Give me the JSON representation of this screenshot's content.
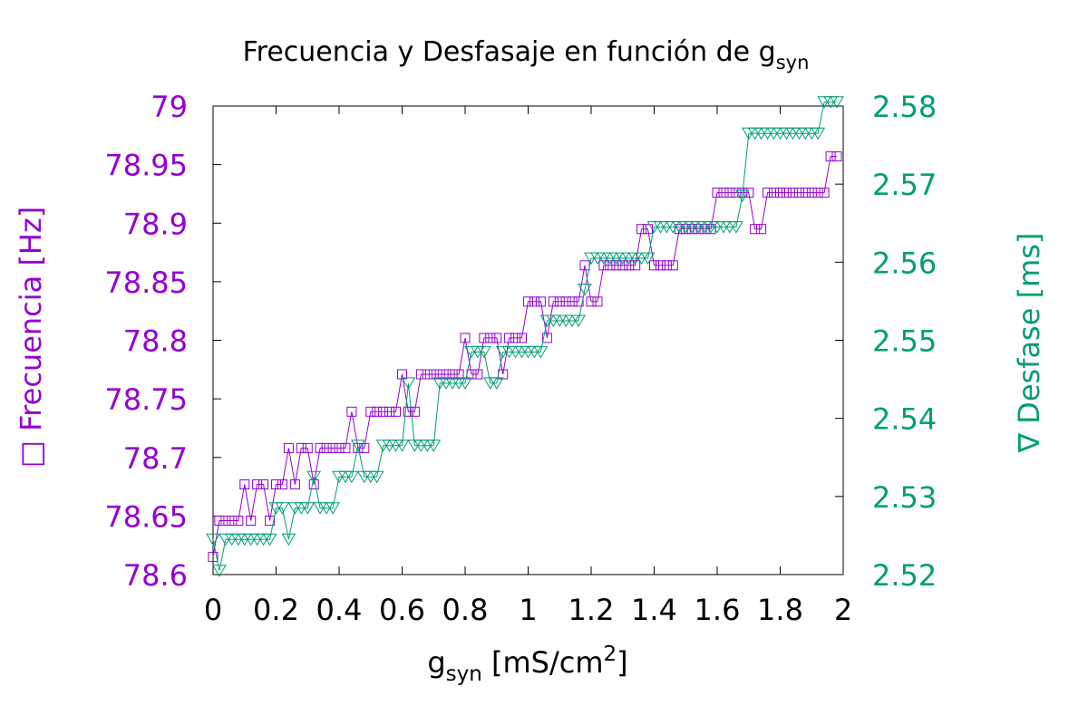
{
  "chart_data": {
    "type": "line",
    "title": {
      "main": "Frecuencia y Desfasaje en función de g",
      "sub": "syn"
    },
    "xlabel": {
      "main": "g",
      "sub": "syn",
      "units_pre": " [mS/cm",
      "sup": "2",
      "units_post": "]"
    },
    "ylabel_left": "□ Frecuencia  [Hz]",
    "ylabel_right": "∇ Desfase [ms]",
    "xlim": [
      0,
      2
    ],
    "ylim_left": [
      78.6,
      79
    ],
    "ylim_right": [
      2.52,
      2.58
    ],
    "x_ticks": [
      "0",
      "0.2",
      "0.4",
      "0.6",
      "0.8",
      "1",
      "1.2",
      "1.4",
      "1.6",
      "1.8",
      "2"
    ],
    "y_left_ticks": [
      "78.6",
      "78.65",
      "78.7",
      "78.75",
      "78.8",
      "78.85",
      "78.9",
      "78.95",
      "79"
    ],
    "y_right_ticks": [
      "2.52",
      "2.53",
      "2.54",
      "2.55",
      "2.56",
      "2.57",
      "2.58"
    ],
    "grid": false,
    "colors": {
      "frecuencia": "#9400D3",
      "desfase": "#009E73",
      "axis": "#000000"
    },
    "x": [
      0,
      0.02,
      0.04,
      0.06,
      0.08,
      0.1,
      0.12,
      0.14,
      0.16,
      0.18,
      0.2,
      0.22,
      0.24,
      0.26,
      0.28,
      0.3,
      0.32,
      0.34,
      0.36,
      0.38,
      0.4,
      0.42,
      0.44,
      0.46,
      0.48,
      0.5,
      0.52,
      0.54,
      0.56,
      0.58,
      0.6,
      0.62,
      0.64,
      0.66,
      0.68,
      0.7,
      0.72,
      0.74,
      0.76,
      0.78,
      0.8,
      0.82,
      0.84,
      0.86,
      0.88,
      0.9,
      0.92,
      0.94,
      0.96,
      0.98,
      1,
      1.02,
      1.04,
      1.06,
      1.08,
      1.1,
      1.12,
      1.14,
      1.16,
      1.18,
      1.2,
      1.22,
      1.24,
      1.26,
      1.28,
      1.3,
      1.32,
      1.34,
      1.36,
      1.38,
      1.4,
      1.42,
      1.44,
      1.46,
      1.48,
      1.5,
      1.52,
      1.54,
      1.56,
      1.58,
      1.6,
      1.62,
      1.64,
      1.66,
      1.68,
      1.7,
      1.72,
      1.74,
      1.76,
      1.78,
      1.8,
      1.82,
      1.84,
      1.86,
      1.88,
      1.9,
      1.92,
      1.94,
      1.96,
      1.98
    ],
    "series": [
      {
        "name": "Frecuencia",
        "axis": "left",
        "marker": "square",
        "values": [
          78.615,
          78.646,
          78.646,
          78.646,
          78.646,
          78.677,
          78.646,
          78.677,
          78.677,
          78.646,
          78.677,
          78.677,
          78.708,
          78.677,
          78.708,
          78.708,
          78.677,
          78.708,
          78.708,
          78.708,
          78.708,
          78.708,
          78.739,
          78.708,
          78.708,
          78.739,
          78.739,
          78.739,
          78.739,
          78.739,
          78.771,
          78.739,
          78.739,
          78.771,
          78.771,
          78.771,
          78.771,
          78.771,
          78.771,
          78.771,
          78.802,
          78.771,
          78.771,
          78.802,
          78.802,
          78.802,
          78.771,
          78.802,
          78.802,
          78.802,
          78.833,
          78.833,
          78.833,
          78.802,
          78.833,
          78.833,
          78.833,
          78.833,
          78.833,
          78.864,
          78.833,
          78.833,
          78.864,
          78.864,
          78.864,
          78.864,
          78.864,
          78.864,
          78.895,
          78.895,
          78.864,
          78.864,
          78.864,
          78.864,
          78.895,
          78.895,
          78.895,
          78.895,
          78.895,
          78.895,
          78.926,
          78.926,
          78.926,
          78.926,
          78.926,
          78.926,
          78.895,
          78.895,
          78.926,
          78.926,
          78.926,
          78.926,
          78.926,
          78.926,
          78.926,
          78.926,
          78.926,
          78.926,
          78.957,
          78.957
        ]
      },
      {
        "name": "Desfase",
        "axis": "right",
        "marker": "triangle-down",
        "values": [
          2.5245,
          2.5205,
          2.5245,
          2.5245,
          2.5245,
          2.5245,
          2.5245,
          2.5245,
          2.5245,
          2.5245,
          2.5285,
          2.5285,
          2.5245,
          2.5285,
          2.5285,
          2.5285,
          2.5325,
          2.5285,
          2.5285,
          2.5285,
          2.5325,
          2.5325,
          2.5325,
          2.5365,
          2.5325,
          2.5325,
          2.5325,
          2.5365,
          2.5365,
          2.5365,
          2.5365,
          2.5445,
          2.5365,
          2.5365,
          2.5365,
          2.5365,
          2.5445,
          2.5445,
          2.5445,
          2.5445,
          2.5445,
          2.5485,
          2.5485,
          2.5485,
          2.5445,
          2.5445,
          2.5485,
          2.5485,
          2.5485,
          2.5485,
          2.5485,
          2.5485,
          2.5485,
          2.5525,
          2.5525,
          2.5525,
          2.5525,
          2.5525,
          2.5525,
          2.5565,
          2.5605,
          2.5605,
          2.5605,
          2.5605,
          2.5605,
          2.5605,
          2.5605,
          2.5605,
          2.5605,
          2.5605,
          2.5645,
          2.5645,
          2.5645,
          2.5645,
          2.5645,
          2.5645,
          2.5645,
          2.5645,
          2.5645,
          2.5645,
          2.5645,
          2.5645,
          2.5645,
          2.5645,
          2.5685,
          2.5765,
          2.5765,
          2.5765,
          2.5765,
          2.5765,
          2.5765,
          2.5765,
          2.5765,
          2.5765,
          2.5765,
          2.5765,
          2.5765,
          2.5805,
          2.5805,
          2.5805
        ]
      }
    ]
  }
}
